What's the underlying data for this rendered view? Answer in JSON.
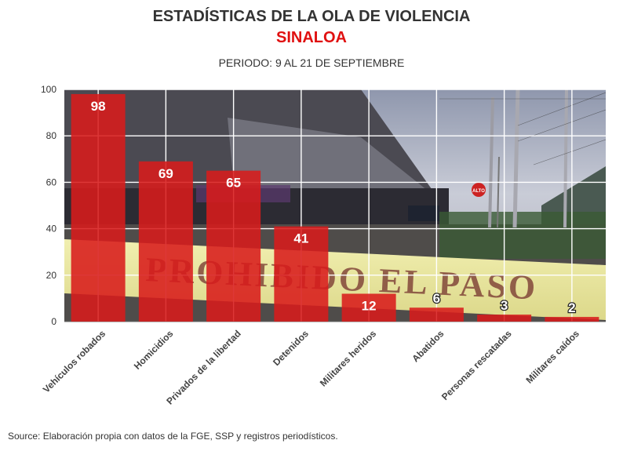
{
  "header": {
    "title": "ESTADÍSTICAS DE LA OLA DE VIOLENCIA",
    "subtitle": "SINALOA",
    "period": "PERIODO: 9 AL 21 DE SEPTIEMBRE"
  },
  "footer": {
    "source": "Source: Elaboración propia con datos de la FGE, SSP y registros periodísticos."
  },
  "background": {
    "tape_text": "PROHIBIDO EL PASO",
    "sign_text": "ALTO"
  },
  "colors": {
    "bar": "#d81b1b",
    "title": "#333333",
    "subtitle": "#e01010",
    "label_text": "#ffffff"
  },
  "chart_data": {
    "type": "bar",
    "title": "ESTADÍSTICAS DE LA OLA DE VIOLENCIA",
    "subtitle": "SINALOA",
    "xlabel": "",
    "ylabel": "",
    "categories": [
      "Vehículos robados",
      "Homicidios",
      "Privados de la libertad",
      "Detenidos",
      "Militares heridos",
      "Abatidos",
      "Personas rescatadas",
      "Militares caídos"
    ],
    "values": [
      98,
      69,
      65,
      41,
      12,
      6,
      3,
      2
    ],
    "ylim": [
      0,
      100
    ],
    "yticks": [
      0,
      20,
      40,
      60,
      80,
      100
    ],
    "grid": true,
    "data_labels": true
  }
}
